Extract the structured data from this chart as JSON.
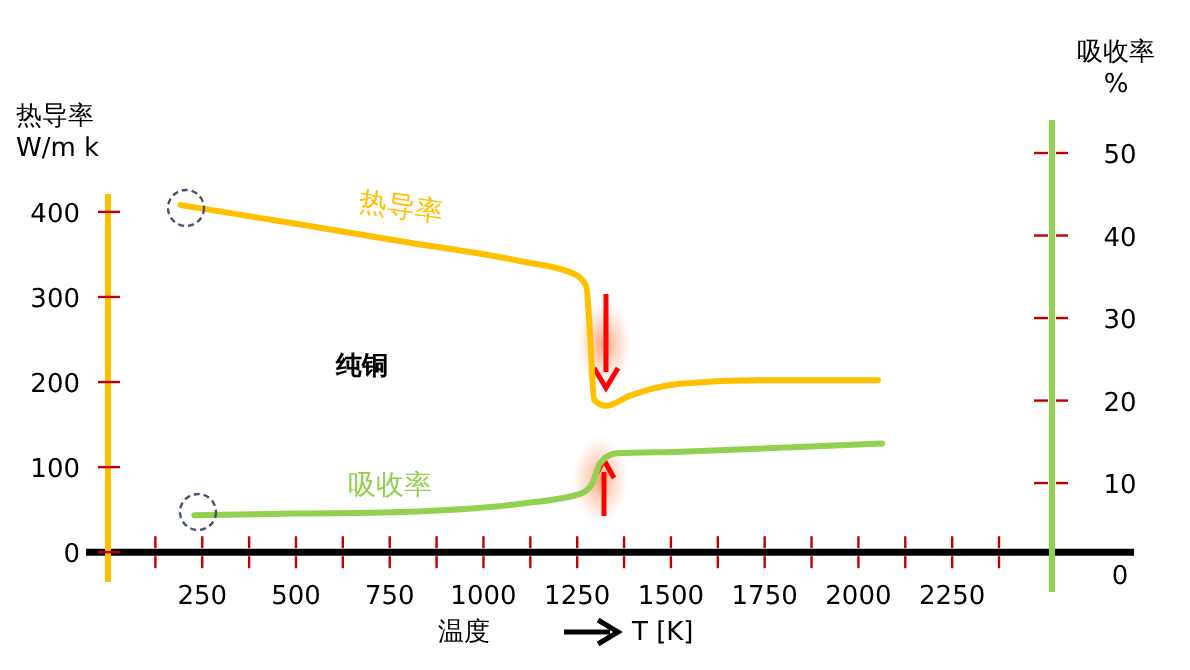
{
  "chart_data": {
    "type": "line",
    "xlabel": "温度",
    "ylabel": "热导率\nW/m k",
    "y2label": "吸收率\n%",
    "annotations": [
      "纯铜",
      "T [K]"
    ],
    "xlim": [
      -60,
      2735
    ],
    "ylim": [
      -35,
      421
    ],
    "y2lim": [
      -3.2,
      54
    ],
    "xticks": [
      {
        "value": 125,
        "label": null
      },
      250,
      {
        "value": 375,
        "label": null
      },
      500,
      {
        "value": 625,
        "label": null
      },
      750,
      {
        "value": 875,
        "label": null
      },
      1000,
      {
        "value": 1125,
        "label": null
      },
      1250,
      {
        "value": 1375,
        "label": null
      },
      1500,
      {
        "value": 1625,
        "label": null
      },
      1750,
      {
        "value": 1875,
        "label": null
      },
      2000,
      {
        "value": 2125,
        "label": null
      },
      2250,
      {
        "value": 2375,
        "label": null
      }
    ],
    "yticks": [
      0,
      100,
      200,
      300,
      400
    ],
    "y2ticks": [
      0,
      10,
      20,
      30,
      40,
      50
    ],
    "grid": false,
    "legend": false,
    "marker": "none",
    "line_style": "solid",
    "series": [
      {
        "name": "热导率",
        "color": "#ffc000",
        "x": [
          192,
          500,
          800,
          1100,
          1242,
          1274,
          1285,
          1295,
          1327,
          1391,
          1525,
          1738,
          2052
        ],
        "values": [
          408,
          386,
          364,
          342,
          327,
          313,
          250,
          179,
          172,
          184,
          198,
          202,
          202
        ]
      },
      {
        "name": "吸收率",
        "color": "#92d050",
        "axis": "y2",
        "x": [
          229,
          500,
          778,
          1098,
          1258,
          1290,
          1311,
          1354,
          1525,
          1800,
          2063
        ],
        "values": [
          6.1,
          6.3,
          6.5,
          7.5,
          8.7,
          9.9,
          12.4,
          13.6,
          13.8,
          14.3,
          14.8
        ]
      }
    ]
  }
}
